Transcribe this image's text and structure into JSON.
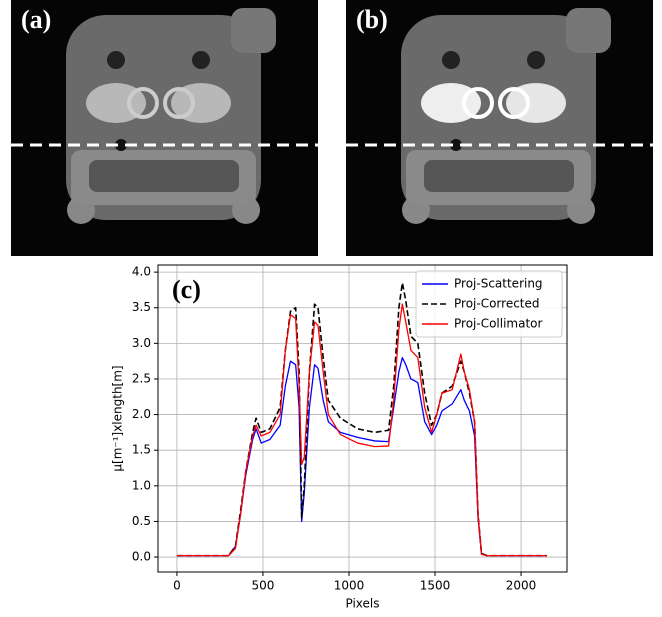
{
  "image_panels": [
    {
      "label": "(a)"
    },
    {
      "label": "(b)"
    }
  ],
  "chart_data": {
    "type": "line",
    "annotation": "(c)",
    "xlabel": "Pixels",
    "ylabel": "µ[m⁻¹]xlength[m]",
    "xlim": [
      -110,
      2267
    ],
    "ylim": [
      -0.21,
      4.1
    ],
    "xticks": [
      0,
      500,
      1000,
      1500,
      2000
    ],
    "yticks": [
      {
        "value": 0,
        "label": "0.0"
      },
      {
        "value": 0.5,
        "label": "0.5"
      },
      {
        "value": 1,
        "label": "1.0"
      },
      {
        "value": 1.5,
        "label": "1.5"
      },
      {
        "value": 2,
        "label": "2.0"
      },
      {
        "value": 2.5,
        "label": "2.5"
      },
      {
        "value": 3,
        "label": "3.0"
      },
      {
        "value": 3.5,
        "label": "3.5"
      },
      {
        "value": 4,
        "label": "4.0"
      }
    ],
    "grid": true,
    "legend": "upper right",
    "x": [
      0,
      300,
      340,
      370,
      400,
      440,
      460,
      490,
      540,
      600,
      630,
      660,
      690,
      710,
      725,
      740,
      770,
      800,
      820,
      850,
      880,
      950,
      1050,
      1150,
      1230,
      1260,
      1290,
      1310,
      1330,
      1360,
      1400,
      1440,
      1480,
      1510,
      1540,
      1600,
      1650,
      1670,
      1700,
      1730,
      1750,
      1770,
      1800,
      2150
    ],
    "series": [
      {
        "name": "Proj-Scattering",
        "color": "#0000ff",
        "linestyle": "solid",
        "values": [
          0.02,
          0.02,
          0.15,
          0.6,
          1.15,
          1.65,
          1.8,
          1.6,
          1.65,
          1.85,
          2.4,
          2.75,
          2.7,
          2.1,
          0.5,
          0.9,
          2.1,
          2.7,
          2.65,
          2.2,
          1.9,
          1.75,
          1.68,
          1.63,
          1.62,
          2.1,
          2.6,
          2.8,
          2.7,
          2.5,
          2.45,
          1.9,
          1.72,
          1.85,
          2.05,
          2.15,
          2.35,
          2.2,
          2.05,
          1.7,
          0.55,
          0.05,
          0.02,
          0.02
        ]
      },
      {
        "name": "Proj-Corrected",
        "color": "#000000",
        "linestyle": "dashed",
        "values": [
          0.02,
          0.02,
          0.15,
          0.65,
          1.2,
          1.75,
          1.95,
          1.75,
          1.8,
          2.1,
          2.9,
          3.45,
          3.5,
          2.6,
          0.55,
          1.0,
          2.6,
          3.55,
          3.5,
          2.8,
          2.2,
          1.95,
          1.8,
          1.75,
          1.78,
          2.4,
          3.5,
          3.85,
          3.6,
          3.1,
          3.0,
          2.3,
          1.85,
          2.0,
          2.3,
          2.4,
          2.75,
          2.6,
          2.3,
          1.9,
          0.6,
          0.05,
          0.02,
          0.02
        ]
      },
      {
        "name": "Proj-Collimator",
        "color": "#ff0000",
        "linestyle": "solid",
        "values": [
          0.02,
          0.02,
          0.12,
          0.6,
          1.2,
          1.7,
          1.85,
          1.7,
          1.75,
          2.0,
          2.9,
          3.4,
          3.35,
          2.4,
          1.3,
          1.4,
          2.6,
          3.3,
          3.25,
          2.6,
          2.0,
          1.72,
          1.6,
          1.55,
          1.56,
          2.2,
          3.2,
          3.55,
          3.3,
          2.9,
          2.8,
          2.1,
          1.75,
          2.0,
          2.3,
          2.35,
          2.85,
          2.6,
          2.35,
          1.9,
          0.6,
          0.04,
          0.02,
          0.02
        ]
      }
    ]
  }
}
